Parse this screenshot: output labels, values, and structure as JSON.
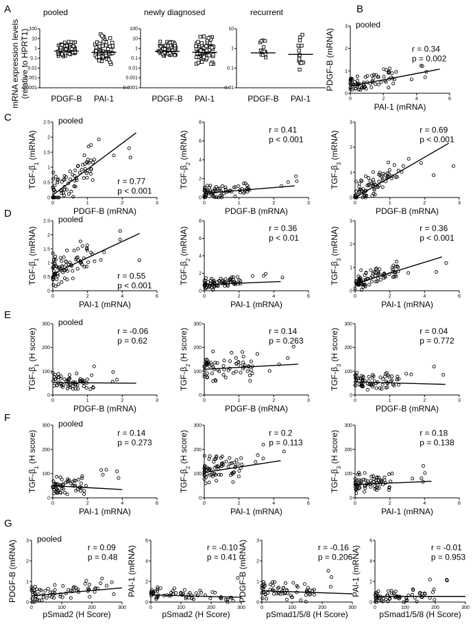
{
  "panel_letters": [
    "A",
    "B",
    "C",
    "D",
    "E",
    "F",
    "G"
  ],
  "stat_lines": {
    "B": [
      "r = 0.34",
      "p = 0.002"
    ],
    "C1": [
      "r = 0.77",
      "p < 0.001"
    ],
    "C2": [
      "r = 0.41",
      "p < 0.001"
    ],
    "C3": [
      "r = 0.69",
      "p < 0.001"
    ],
    "D1": [
      "r = 0.55",
      "p < 0.001"
    ],
    "D2": [
      "r = 0.36",
      "p < 0.01"
    ],
    "D3": [
      "r = 0.36",
      "p < 0.001"
    ],
    "E1": [
      "r = -0.06",
      "p = 0.62"
    ],
    "E2": [
      "r = 0.14",
      "p = 0.263"
    ],
    "E3": [
      "r = 0.04",
      "p = 0.772"
    ],
    "F1": [
      "r = 0.14",
      "p = 0.273"
    ],
    "F2": [
      "r = 0.2",
      "p = 0.113"
    ],
    "F3": [
      "r = 0.18",
      "p = 0.138"
    ],
    "G1": [
      "r = 0.09",
      "p = 0.48"
    ],
    "G2": [
      "r = -0.10",
      "p = 0.41"
    ],
    "G3": [
      "r = -0.16",
      "p = 0.206"
    ],
    "G4": [
      "r = -0.01",
      "p = 0.953"
    ]
  },
  "chart_data": [
    {
      "panel": "A",
      "type": "scatter",
      "subtype": "dot-plot",
      "ylabel": "mRNA expression levels (relative to HPRT1)",
      "yscale": "log",
      "groups": [
        {
          "title": "pooled",
          "categories": [
            "PDGF-B",
            "PAI-1"
          ],
          "yticks": [
            "0.0001",
            "0.001",
            "0.01",
            "0.1",
            "1",
            "10",
            "100"
          ],
          "ylim": [
            0.0001,
            100
          ],
          "median": [
            0.55,
            0.4
          ]
        },
        {
          "title": "newly diagnosed",
          "categories": [
            "PDGF-B",
            "PAI-1"
          ],
          "yticks": [
            "0.0001",
            "0.001",
            "0.01",
            "0.1",
            "1",
            "10",
            "100"
          ],
          "ylim": [
            0.0001,
            100
          ],
          "median": [
            0.5,
            0.4
          ]
        },
        {
          "title": "recurrent",
          "categories": [
            "PDGF-B",
            "PAI-1"
          ],
          "yticks": [
            "0.01",
            "0.1",
            "1",
            "10"
          ],
          "ylim": [
            0.01,
            10
          ],
          "median": [
            0.6,
            0.5
          ]
        }
      ]
    },
    {
      "panel": "B",
      "type": "scatter",
      "title": "pooled",
      "xlabel": "PAI-1 (mRNA)",
      "ylabel": "PDGF-B (mRNA)",
      "xlim": [
        0,
        6
      ],
      "ylim": [
        0,
        3
      ],
      "xticks": [
        "0",
        "2",
        "4",
        "6"
      ],
      "yticks": [
        "0",
        "1",
        "2",
        "3"
      ],
      "fit": [
        0.32,
        0.14
      ],
      "n": 70,
      "xmax": 2.8,
      "ymax": 1.2
    },
    {
      "panel": "C",
      "type": "scatter",
      "title": "pooled",
      "xlabel": "PDGF-B (mRNA)",
      "ylabel": "TGF-β1 (mRNA)",
      "xlim": [
        0,
        3
      ],
      "ylim": [
        0,
        2.5
      ],
      "xticks": [
        "0",
        "1",
        "2",
        "3"
      ],
      "yticks": [
        "0",
        "0.5",
        "1",
        "1.5",
        "2",
        "2.5"
      ],
      "fit": [
        0.08,
        0.86
      ],
      "n": 80,
      "xmax": 1.2,
      "ymax": 2.0
    },
    {
      "panel": "C",
      "type": "scatter",
      "title": "",
      "xlabel": "PDGF-B (mRNA)",
      "ylabel": "TGF-β2 (mRNA)",
      "xlim": [
        0,
        3
      ],
      "ylim": [
        0,
        8
      ],
      "xticks": [
        "0",
        "1",
        "2",
        "3"
      ],
      "yticks": [
        "0",
        "2",
        "4",
        "6",
        "8"
      ],
      "fit": [
        0.45,
        0.3
      ],
      "n": 70,
      "xmax": 1.3,
      "ymax": 2.2
    },
    {
      "panel": "C",
      "type": "scatter",
      "title": "",
      "xlabel": "PDGF-B (mRNA)",
      "ylabel": "TGF-β3 (mRNA)",
      "xlim": [
        0,
        3
      ],
      "ylim": [
        0,
        3
      ],
      "xticks": [
        "0",
        "1",
        "2",
        "3"
      ],
      "yticks": [
        "0",
        "1",
        "2",
        "3"
      ],
      "fit": [
        0.0,
        0.8
      ],
      "n": 80,
      "xmax": 1.4,
      "ymax": 1.6
    },
    {
      "panel": "D",
      "type": "scatter",
      "title": "pooled",
      "xlabel": "PAI-1 (mRNA)",
      "ylabel": "TGF-β1 (mRNA)",
      "xlim": [
        0,
        6
      ],
      "ylim": [
        0,
        2.5
      ],
      "xticks": [
        "0",
        "2",
        "4",
        "6"
      ],
      "yticks": [
        "0",
        "0.5",
        "1",
        "1.5",
        "2",
        "2.5"
      ],
      "fit": [
        0.6,
        0.29
      ],
      "n": 80,
      "xmax": 2.5,
      "ymax": 2.0
    },
    {
      "panel": "D",
      "type": "scatter",
      "title": "",
      "xlabel": "PAI-1 (mRNA)",
      "ylabel": "TGF-β2 (mRNA)",
      "xlim": [
        0,
        6
      ],
      "ylim": [
        0,
        8
      ],
      "xticks": [
        "0",
        "2",
        "4",
        "6"
      ],
      "yticks": [
        "0",
        "2",
        "4",
        "6",
        "8"
      ],
      "fit": [
        0.7,
        0.08
      ],
      "n": 70,
      "xmax": 2.2,
      "ymax": 2.2
    },
    {
      "panel": "D",
      "type": "scatter",
      "title": "",
      "xlabel": "PAI-1 (mRNA)",
      "ylabel": "TGF-β3 (mRNA)",
      "xlim": [
        0,
        6
      ],
      "ylim": [
        0,
        3
      ],
      "xticks": [
        "0",
        "2",
        "4",
        "6"
      ],
      "yticks": [
        "0",
        "1",
        "2",
        "3"
      ],
      "fit": [
        0.3,
        0.23
      ],
      "n": 80,
      "xmax": 2.5,
      "ymax": 1.4
    },
    {
      "panel": "E",
      "type": "scatter",
      "title": "pooled",
      "xlabel": "PDGF-B (mRNA)",
      "ylabel": "TGF-β1 (H score)",
      "xlim": [
        0,
        3
      ],
      "ylim": [
        0,
        300
      ],
      "xticks": [
        "0",
        "1",
        "2",
        "3"
      ],
      "yticks": [
        "0",
        "100",
        "200",
        "300"
      ],
      "fit": [
        52,
        -1
      ],
      "n": 60,
      "xmax": 1.2,
      "ymax": 110
    },
    {
      "panel": "E",
      "type": "scatter",
      "title": "",
      "xlabel": "PDGF-B (mRNA)",
      "ylabel": "TGF-β2 (H score)",
      "xlim": [
        0,
        3
      ],
      "ylim": [
        0,
        300
      ],
      "xticks": [
        "0",
        "1",
        "2",
        "3"
      ],
      "yticks": [
        "0",
        "100",
        "200",
        "300"
      ],
      "fit": [
        108,
        8
      ],
      "n": 65,
      "xmax": 1.4,
      "ymax": 190
    },
    {
      "panel": "E",
      "type": "scatter",
      "title": "",
      "xlabel": "PDGF-B (mRNA)",
      "ylabel": "TGF-β3 (H score)",
      "xlim": [
        0,
        3
      ],
      "ylim": [
        0,
        300
      ],
      "xticks": [
        "0",
        "1",
        "2",
        "3"
      ],
      "yticks": [
        "0",
        "100",
        "200",
        "300"
      ],
      "fit": [
        55,
        -4
      ],
      "n": 70,
      "xmax": 1.3,
      "ymax": 110
    },
    {
      "panel": "F",
      "type": "scatter",
      "title": "pooled",
      "xlabel": "PAI-1 (mRNA)",
      "ylabel": "TGF-β1 (H score)",
      "xlim": [
        0,
        6
      ],
      "ylim": [
        0,
        300
      ],
      "xticks": [
        "0",
        "2",
        "4",
        "6"
      ],
      "yticks": [
        "0",
        "100",
        "200",
        "300"
      ],
      "fit": [
        50,
        -4
      ],
      "n": 60,
      "xmax": 2.0,
      "ymax": 110
    },
    {
      "panel": "F",
      "type": "scatter",
      "title": "",
      "xlabel": "PAI-1 (mRNA)",
      "ylabel": "TGF-β2 (H score)",
      "xlim": [
        0,
        6
      ],
      "ylim": [
        0,
        300
      ],
      "xticks": [
        "0",
        "2",
        "4",
        "6"
      ],
      "yticks": [
        "0",
        "100",
        "200",
        "300"
      ],
      "fit": [
        105,
        11
      ],
      "n": 70,
      "xmax": 2.2,
      "ymax": 200
    },
    {
      "panel": "F",
      "type": "scatter",
      "title": "",
      "xlabel": "PAI-1 (mRNA)",
      "ylabel": "TGF-β3 (H score)",
      "xlim": [
        0,
        6
      ],
      "ylim": [
        0,
        300
      ],
      "xticks": [
        "0",
        "2",
        "4",
        "6"
      ],
      "yticks": [
        "0",
        "100",
        "200",
        "300"
      ],
      "fit": [
        55,
        3
      ],
      "n": 70,
      "xmax": 2.2,
      "ymax": 120
    },
    {
      "panel": "G",
      "type": "scatter",
      "title": "pooled",
      "xlabel": "pSmad2 (H Score)",
      "ylabel": "PDGF-B (mRNA)",
      "xlim": [
        0,
        300
      ],
      "ylim": [
        0,
        3
      ],
      "xticks": [
        "0",
        "100",
        "200",
        "300"
      ],
      "yticks": [
        "0",
        "1",
        "2",
        "3"
      ],
      "fit": [
        0.3,
        0.0013
      ],
      "n": 65,
      "xmax": 280,
      "ymax": 1.4
    },
    {
      "panel": "G",
      "type": "scatter",
      "title": "",
      "xlabel": "pSmad2 (H Score)",
      "ylabel": "PAI-1 (mRNA)",
      "xlim": [
        0,
        300
      ],
      "ylim": [
        0,
        6
      ],
      "xticks": [
        "0",
        "100",
        "200",
        "300"
      ],
      "yticks": [
        "0",
        "2",
        "4",
        "6"
      ],
      "fit": [
        0.7,
        -0.0008
      ],
      "n": 60,
      "xmax": 280,
      "ymax": 2.2
    },
    {
      "panel": "G",
      "type": "scatter",
      "title": "",
      "xlabel": "pSmad1/5/8 (H Score)",
      "ylabel": "PDGF-B (mRNA)",
      "xlim": [
        0,
        300
      ],
      "ylim": [
        0,
        3
      ],
      "xticks": [
        "0",
        "100",
        "200",
        "300"
      ],
      "yticks": [
        "0",
        "1",
        "2",
        "3"
      ],
      "fit": [
        0.55,
        -0.0005
      ],
      "n": 60,
      "xmax": 180,
      "ymax": 1.4
    },
    {
      "panel": "G",
      "type": "scatter",
      "title": "",
      "xlabel": "pSmad1/5/8 (H Score)",
      "ylabel": "PAI-1 (mRNA)",
      "xlim": [
        0,
        300
      ],
      "ylim": [
        0,
        6
      ],
      "xticks": [
        "0",
        "100",
        "200",
        "300"
      ],
      "yticks": [
        "0",
        "2",
        "4",
        "6"
      ],
      "fit": [
        0.55,
        0.0
      ],
      "n": 60,
      "xmax": 200,
      "ymax": 2.2
    }
  ]
}
